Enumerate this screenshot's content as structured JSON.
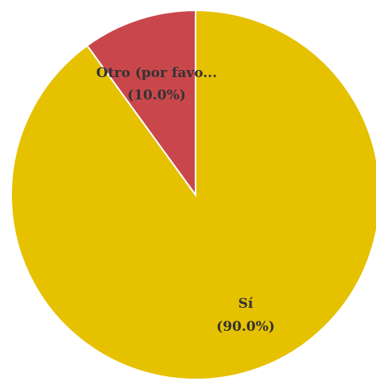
{
  "chart_data": {
    "type": "pie",
    "title": "",
    "slices": [
      {
        "label": "Sí",
        "percent_label": "(90.0%)",
        "value": 90.0,
        "color": "#e5c100"
      },
      {
        "label": "Otro (por favo...",
        "percent_label": "(10.0%)",
        "value": 10.0,
        "color": "#c9474b"
      }
    ],
    "start_angle_deg": 0,
    "direction": "clockwise",
    "slice_border_color": "#ffffff",
    "legend": "none",
    "label_color": "#333333"
  }
}
